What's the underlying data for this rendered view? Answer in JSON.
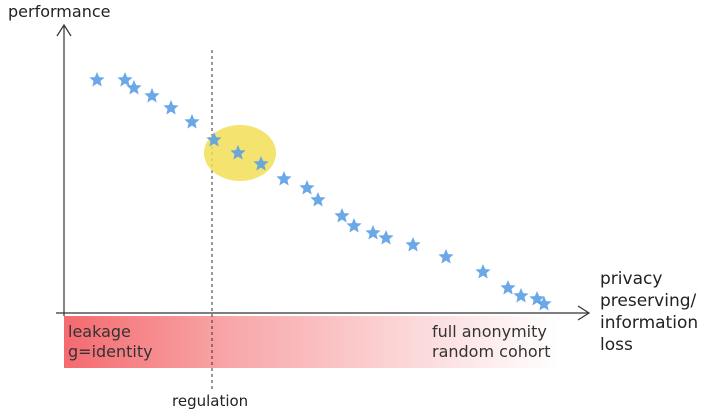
{
  "labels": {
    "y_axis": "performance",
    "x_axis": "privacy\npreserving/\ninformation\nloss",
    "bar_left_line1": "leakage",
    "bar_left_line2": "g=identity",
    "bar_right_line1": "full anonymity",
    "bar_right_line2": "random cohort",
    "regulation": "regulation"
  },
  "colors": {
    "star": "#5b9fe6",
    "highlight": "#f2de55",
    "gradient_start": "#f46a6f",
    "gradient_end": "#ffffff",
    "axis": "#333333"
  },
  "icons": {
    "marker": "star-icon"
  }
}
